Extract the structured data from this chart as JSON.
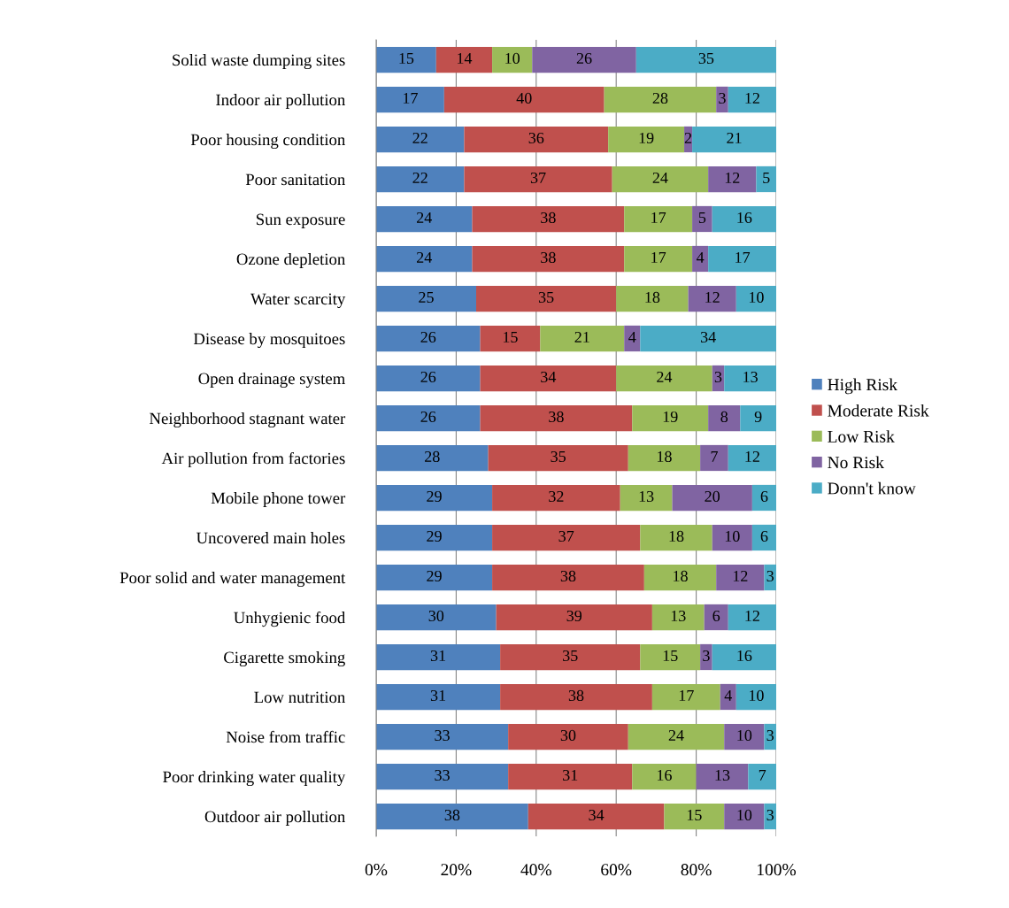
{
  "chart_data": {
    "type": "bar",
    "orientation": "horizontal",
    "stacked": true,
    "data_labels": true,
    "grid": "x",
    "legend": "right",
    "categories": [
      "Solid waste dumping sites",
      "Indoor air pollution",
      "Poor housing condition",
      "Poor sanitation",
      "Sun exposure",
      "Ozone depletion",
      "Water scarcity",
      "Disease by mosquitoes",
      "Open drainage system",
      "Neighborhood stagnant water",
      "Air pollution from factories",
      "Mobile phone tower",
      "Uncovered main holes",
      "Poor solid and water management",
      "Unhygienic food",
      "Cigarette smoking",
      "Low nutrition",
      "Noise from traffic",
      "Poor drinking water quality",
      "Outdoor air pollution"
    ],
    "series": [
      {
        "name": "High Risk",
        "color": "#4f81bd",
        "values": [
          15,
          17,
          22,
          22,
          24,
          24,
          25,
          26,
          26,
          26,
          28,
          29,
          29,
          29,
          30,
          31,
          31,
          33,
          33,
          38
        ]
      },
      {
        "name": "Moderate Risk",
        "color": "#c0504d",
        "values": [
          14,
          40,
          36,
          37,
          38,
          38,
          35,
          15,
          34,
          38,
          35,
          32,
          37,
          38,
          39,
          35,
          38,
          30,
          31,
          34
        ]
      },
      {
        "name": "Low Risk",
        "color": "#9bbb59",
        "values": [
          10,
          28,
          19,
          24,
          17,
          17,
          18,
          21,
          24,
          19,
          18,
          13,
          18,
          18,
          13,
          15,
          17,
          24,
          16,
          15
        ]
      },
      {
        "name": "No Risk",
        "color": "#8064a2",
        "values": [
          26,
          3,
          2,
          12,
          5,
          4,
          12,
          4,
          3,
          8,
          7,
          20,
          10,
          12,
          6,
          3,
          4,
          10,
          13,
          10
        ]
      },
      {
        "name": "Donn't know",
        "color": "#4bacc6",
        "values": [
          35,
          12,
          21,
          5,
          16,
          17,
          10,
          34,
          13,
          9,
          12,
          6,
          6,
          3,
          12,
          16,
          10,
          3,
          7,
          3
        ]
      }
    ],
    "xlim": [
      0,
      100
    ],
    "xticks": [
      {
        "value": 0,
        "label": "0%"
      },
      {
        "value": 20,
        "label": "20%"
      },
      {
        "value": 40,
        "label": "40%"
      },
      {
        "value": 60,
        "label": "60%"
      },
      {
        "value": 80,
        "label": "80%"
      },
      {
        "value": 100,
        "label": "100%"
      }
    ]
  }
}
